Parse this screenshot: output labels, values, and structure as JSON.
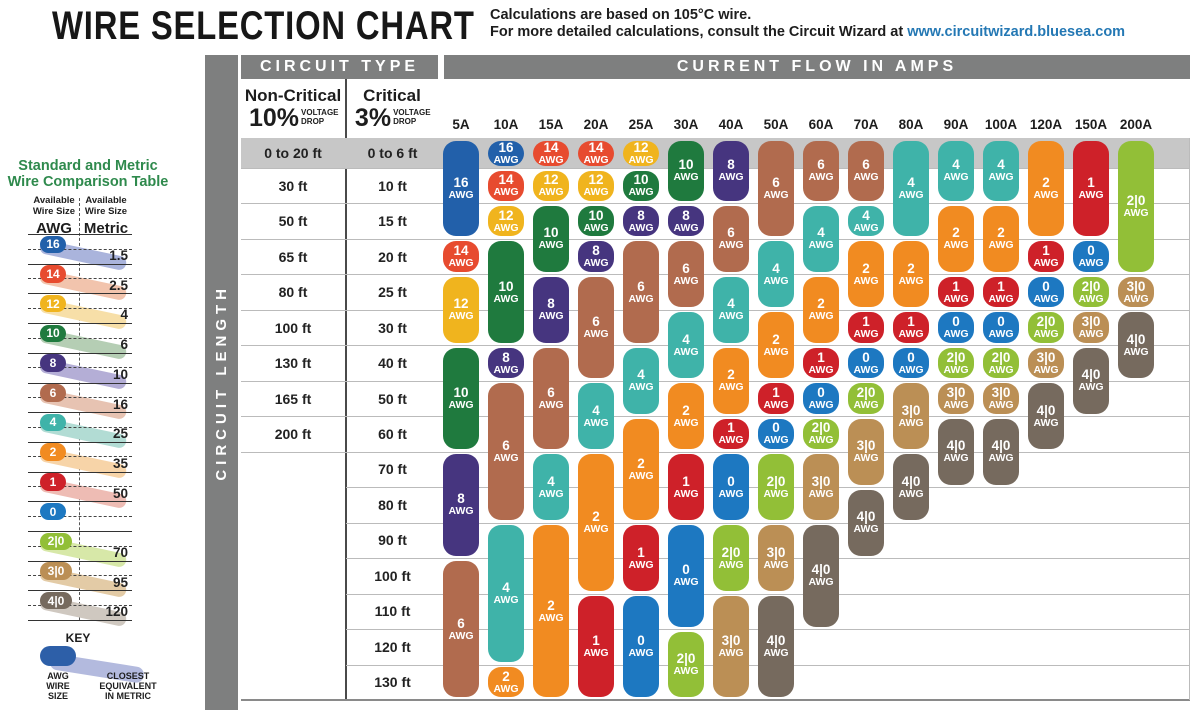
{
  "header": {
    "title": "WIRE SELECTION CHART",
    "note_line1": "Calculations are based on 105°C wire.",
    "note_line2_prefix": "For more detailed calculations, consult the Circuit Wizard at ",
    "note_link": "www.circuitwizard.bluesea.com",
    "link_color": "#2478b4"
  },
  "sidebar": {
    "title_line1": "Standard and Metric",
    "title_line2": "Wire Comparison Table",
    "title_color": "#2f8a4d",
    "col1_header": "Available Wire Size",
    "col1_unit": "AWG",
    "col2_header": "Available Wire Size",
    "col2_unit": "Metric",
    "rows": [
      {
        "awg": "16",
        "metric": "1.5",
        "color": "#2260aa",
        "band": "#aab4dc"
      },
      {
        "awg": "14",
        "metric": "2.5",
        "color": "#e74b2f",
        "band": "#f2c4ad"
      },
      {
        "awg": "12",
        "metric": "4",
        "color": "#f0b41e",
        "band": "#f7dfa8"
      },
      {
        "awg": "10",
        "metric": "6",
        "color": "#1f7a3e",
        "band": "#b5ceb4"
      },
      {
        "awg": "8",
        "metric": "10",
        "color": "#46357f",
        "band": "#b4aed6"
      },
      {
        "awg": "6",
        "metric": "16",
        "color": "#b16b4e",
        "band": "#e7c3b2"
      },
      {
        "awg": "4",
        "metric": "25",
        "color": "#3fb3a9",
        "band": "#b2dcd4"
      },
      {
        "awg": "2",
        "metric": "35",
        "color": "#f18b21",
        "band": "#f7d4a8"
      },
      {
        "awg": "1",
        "metric": "50",
        "color": "#ce2129",
        "band": "#eebcb4"
      },
      {
        "awg": "0",
        "metric": "",
        "color": "#1d78c1",
        "band": ""
      },
      {
        "awg": "2|0",
        "metric": "70",
        "color": "#92bf37",
        "band": "#d7e8a8"
      },
      {
        "awg": "3|0",
        "metric": "95",
        "color": "#bb8f55",
        "band": "#e3cba6"
      },
      {
        "awg": "4|0",
        "metric": "120",
        "color": "#766a5e",
        "band": "#cfc8c0"
      }
    ],
    "key": {
      "title": "KEY",
      "label1": "AWG\nWIRE\nSIZE",
      "label2": "CLOSEST\nEQUIVALENT\nIN METRIC",
      "pill_color": "#2d5fa8",
      "band_color": "#b3bade"
    }
  },
  "table": {
    "circuit_type_header": "CIRCUIT TYPE",
    "current_flow_header": "CURRENT FLOW IN AMPS",
    "circuit_length_label": "CIRCUIT LENGTH",
    "non_critical_name": "Non-Critical",
    "non_critical_pct": "10%",
    "non_critical_drop": "VOLTAGE DROP",
    "critical_name": "Critical",
    "critical_pct": "3%",
    "critical_drop": "VOLTAGE DROP"
  },
  "chart_data": {
    "type": "table",
    "title": "Wire Selection Chart",
    "pill_suffix": "AWG",
    "amp_columns": [
      "5A",
      "10A",
      "15A",
      "20A",
      "25A",
      "30A",
      "40A",
      "50A",
      "60A",
      "70A",
      "80A",
      "90A",
      "100A",
      "120A",
      "150A",
      "200A"
    ],
    "row_labels_non_critical": [
      "0 to 20 ft",
      "30 ft",
      "50 ft",
      "65 ft",
      "80 ft",
      "100 ft",
      "130 ft",
      "165 ft",
      "200 ft"
    ],
    "row_labels_critical": [
      "0 to 6 ft",
      "10 ft",
      "15 ft",
      "20 ft",
      "25 ft",
      "30 ft",
      "40 ft",
      "50 ft",
      "60 ft",
      "70 ft",
      "80 ft",
      "90 ft",
      "100 ft",
      "110 ft",
      "120 ft",
      "130 ft"
    ],
    "awg_colors": {
      "16": "#2260aa",
      "14": "#e74b2f",
      "12": "#f0b41e",
      "10": "#1f7a3e",
      "8": "#46357f",
      "6": "#b16b4e",
      "4": "#3fb3a9",
      "2": "#f18b21",
      "1": "#ce2129",
      "0": "#1d78c1",
      "2|0": "#92bf37",
      "3|0": "#bb8f55",
      "4|0": "#766a5e"
    },
    "columns": [
      {
        "amps": "5A",
        "segments": [
          [
            "16",
            1,
            3
          ],
          [
            "14",
            4,
            4
          ],
          [
            "12",
            5,
            6
          ],
          [
            "10",
            7,
            9
          ],
          [
            "8",
            10,
            12
          ],
          [
            "6",
            13,
            16
          ]
        ]
      },
      {
        "amps": "10A",
        "segments": [
          [
            "16",
            1,
            1
          ],
          [
            "14",
            2,
            2
          ],
          [
            "12",
            3,
            3
          ],
          [
            "10",
            4,
            6
          ],
          [
            "8",
            7,
            7
          ],
          [
            "6",
            8,
            11
          ],
          [
            "4",
            12,
            15
          ],
          [
            "2",
            16,
            16
          ]
        ]
      },
      {
        "amps": "15A",
        "segments": [
          [
            "14",
            1,
            1
          ],
          [
            "12",
            2,
            2
          ],
          [
            "10",
            3,
            4
          ],
          [
            "8",
            5,
            6
          ],
          [
            "6",
            7,
            9
          ],
          [
            "4",
            10,
            11
          ],
          [
            "2",
            12,
            16
          ]
        ]
      },
      {
        "amps": "20A",
        "segments": [
          [
            "14",
            1,
            1
          ],
          [
            "12",
            2,
            2
          ],
          [
            "10",
            3,
            3
          ],
          [
            "8",
            4,
            4
          ],
          [
            "6",
            5,
            7
          ],
          [
            "4",
            8,
            9
          ],
          [
            "2",
            10,
            13
          ],
          [
            "1",
            14,
            16
          ]
        ]
      },
      {
        "amps": "25A",
        "segments": [
          [
            "12",
            1,
            1
          ],
          [
            "10",
            2,
            2
          ],
          [
            "8",
            3,
            3
          ],
          [
            "6",
            4,
            6
          ],
          [
            "4",
            7,
            8
          ],
          [
            "2",
            9,
            11
          ],
          [
            "1",
            12,
            13
          ],
          [
            "0",
            14,
            16
          ]
        ]
      },
      {
        "amps": "30A",
        "segments": [
          [
            "10",
            1,
            2
          ],
          [
            "8",
            3,
            3
          ],
          [
            "6",
            4,
            5
          ],
          [
            "4",
            6,
            7
          ],
          [
            "2",
            8,
            9
          ],
          [
            "1",
            10,
            11
          ],
          [
            "0",
            12,
            14
          ],
          [
            "2|0",
            15,
            16
          ]
        ]
      },
      {
        "amps": "40A",
        "segments": [
          [
            "8",
            1,
            2
          ],
          [
            "6",
            3,
            4
          ],
          [
            "4",
            5,
            6
          ],
          [
            "2",
            7,
            8
          ],
          [
            "1",
            9,
            9
          ],
          [
            "0",
            10,
            11
          ],
          [
            "2|0",
            12,
            13
          ],
          [
            "3|0",
            14,
            16
          ]
        ]
      },
      {
        "amps": "50A",
        "segments": [
          [
            "6",
            1,
            3
          ],
          [
            "4",
            4,
            5
          ],
          [
            "2",
            6,
            7
          ],
          [
            "1",
            8,
            8
          ],
          [
            "0",
            9,
            9
          ],
          [
            "2|0",
            10,
            11
          ],
          [
            "3|0",
            12,
            13
          ],
          [
            "4|0",
            14,
            16
          ]
        ]
      },
      {
        "amps": "60A",
        "segments": [
          [
            "6",
            1,
            2
          ],
          [
            "4",
            3,
            4
          ],
          [
            "2",
            5,
            6
          ],
          [
            "1",
            7,
            7
          ],
          [
            "0",
            8,
            8
          ],
          [
            "2|0",
            9,
            9
          ],
          [
            "3|0",
            10,
            11
          ],
          [
            "4|0",
            12,
            14
          ]
        ]
      },
      {
        "amps": "70A",
        "segments": [
          [
            "6",
            1,
            2
          ],
          [
            "4",
            3,
            3
          ],
          [
            "2",
            4,
            5
          ],
          [
            "1",
            6,
            6
          ],
          [
            "0",
            7,
            7
          ],
          [
            "2|0",
            8,
            8
          ],
          [
            "3|0",
            9,
            10
          ],
          [
            "4|0",
            11,
            12
          ]
        ]
      },
      {
        "amps": "80A",
        "segments": [
          [
            "4",
            1,
            3
          ],
          [
            "2",
            4,
            5
          ],
          [
            "1",
            6,
            6
          ],
          [
            "0",
            7,
            7
          ],
          [
            "3|0",
            8,
            9
          ],
          [
            "4|0",
            10,
            11
          ]
        ]
      },
      {
        "amps": "90A",
        "segments": [
          [
            "4",
            1,
            2
          ],
          [
            "2",
            3,
            4
          ],
          [
            "1",
            5,
            5
          ],
          [
            "0",
            6,
            6
          ],
          [
            "2|0",
            7,
            7
          ],
          [
            "3|0",
            8,
            8
          ],
          [
            "4|0",
            9,
            10
          ]
        ]
      },
      {
        "amps": "100A",
        "segments": [
          [
            "4",
            1,
            2
          ],
          [
            "2",
            3,
            4
          ],
          [
            "1",
            5,
            5
          ],
          [
            "0",
            6,
            6
          ],
          [
            "2|0",
            7,
            7
          ],
          [
            "3|0",
            8,
            8
          ],
          [
            "4|0",
            9,
            10
          ]
        ]
      },
      {
        "amps": "120A",
        "segments": [
          [
            "2",
            1,
            3
          ],
          [
            "1",
            4,
            4
          ],
          [
            "0",
            5,
            5
          ],
          [
            "2|0",
            6,
            6
          ],
          [
            "3|0",
            7,
            7
          ],
          [
            "4|0",
            8,
            9
          ]
        ]
      },
      {
        "amps": "150A",
        "segments": [
          [
            "1",
            1,
            3
          ],
          [
            "0",
            4,
            4
          ],
          [
            "2|0",
            5,
            5
          ],
          [
            "3|0",
            6,
            6
          ],
          [
            "4|0",
            7,
            8
          ]
        ]
      },
      {
        "amps": "200A",
        "segments": [
          [
            "2|0",
            1,
            4
          ],
          [
            "3|0",
            5,
            5
          ],
          [
            "4|0",
            6,
            7
          ]
        ]
      }
    ],
    "colors": {
      "header_bar": "#7e7f7f",
      "row1_band": "#c7c7c7",
      "grid_line": "#bbbbbb"
    }
  }
}
